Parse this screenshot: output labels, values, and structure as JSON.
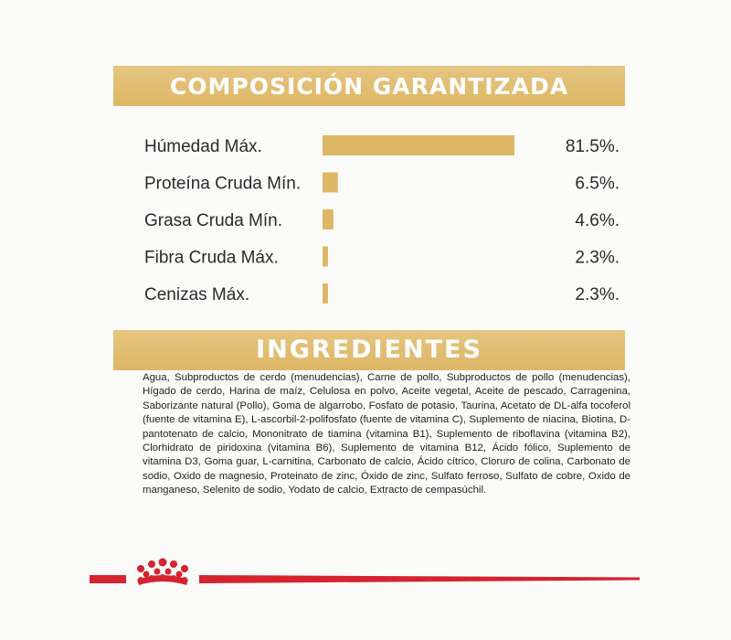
{
  "composition": {
    "title": "COMPOSICIÓN GARANTIZADA"
  },
  "chart_data": {
    "type": "bar",
    "orientation": "horizontal",
    "title": "COMPOSICIÓN GARANTIZADA",
    "categories": [
      "Húmedad Máx.",
      "Proteína Cruda Mín.",
      "Grasa Cruda Mín.",
      "Fibra Cruda Máx.",
      "Cenizas Máx."
    ],
    "values": [
      81.5,
      6.5,
      4.6,
      2.3,
      2.3
    ],
    "value_labels": [
      "81.5%.",
      "6.5%.",
      "4.6%.",
      "2.3%.",
      "2.3%."
    ],
    "xlabel": "",
    "ylabel": "",
    "xlim": [
      0,
      81.5
    ],
    "grid": false,
    "bar_color": "#ddb766"
  },
  "ingredients": {
    "title": "INGREDIENTES",
    "text": "Agua, Subproductos de cerdo (menudencias), Carne de pollo, Subproductos de pollo (menudencias), Hígado de cerdo, Harina de maíz, Celulosa en polvo, Aceite vegetal, Aceite de pescado, Carragenina, Saborizante natural (Pollo), Goma de algarrobo, Fosfato de potasio, Taurina, Acetato de DL-alfa tocoferol (fuente de vitamina E), L-ascorbil-2-polifosfato (fuente de vitamina C), Suplemento de niacina, Biotina, D-pantotenato de calcio, Mononitrato de tiamina (vitamina B1), Suplemento de riboflavina (vitamina B2), Clorhidrato de piridoxina (vitamina B6), Suplemento de vitamina B12, Ácido fólico, Suplemento de vitamina D3, Goma guar, L-carnitina, Carbonato de calcio, Ácido cítrico, Cloruro de colina, Carbonato de sodio, Oxido de magnesio, Proteinato de zinc, Óxido de zinc, Sulfato ferroso, Sulfato de cobre, Oxido de manganeso, Selenito de sodio, Yodato de calcio, Extracto de cempasúchil."
  },
  "footer": {
    "logo_icon": "royal-crown-icon",
    "line_color": "#d5232f"
  }
}
